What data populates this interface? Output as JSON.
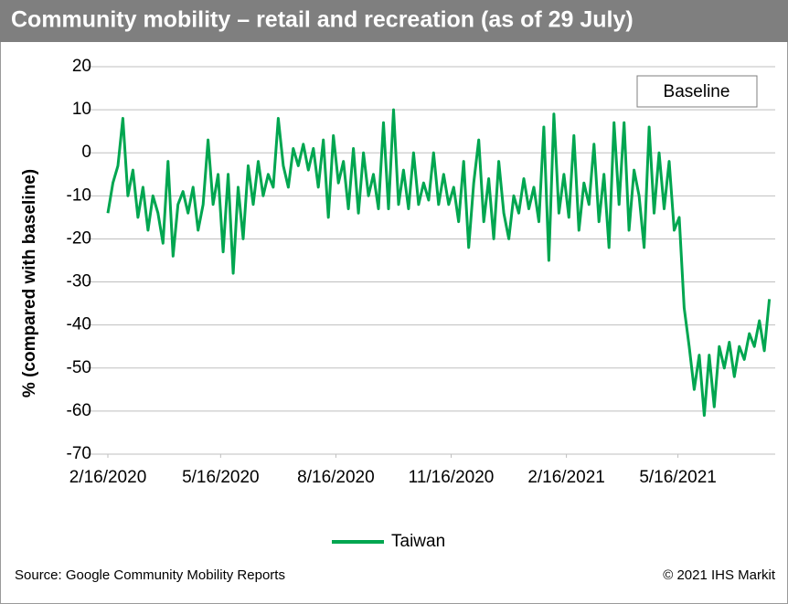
{
  "chart_data": {
    "type": "line",
    "title": "Community mobility – retail and recreation (as of 29 July)",
    "y_label": "% (compared with baseline)",
    "annotation": "Baseline",
    "source": "Source: Google Community Mobility Reports",
    "copyright": "© 2021 IHS Markit",
    "ylim": [
      -70,
      20
    ],
    "yticks": [
      -70,
      -60,
      -50,
      -40,
      -30,
      -20,
      -10,
      0,
      10,
      20
    ],
    "grid": true,
    "xlim": [
      "2020-02-16",
      "2021-07-29"
    ],
    "xticks": [
      {
        "value": "2020-02-16",
        "label": "2/16/2020"
      },
      {
        "value": "2020-05-16",
        "label": "5/16/2020"
      },
      {
        "value": "2020-08-16",
        "label": "8/16/2020"
      },
      {
        "value": "2020-11-16",
        "label": "11/16/2020"
      },
      {
        "value": "2021-02-16",
        "label": "2/16/2021"
      },
      {
        "value": "2021-05-16",
        "label": "5/16/2021"
      }
    ],
    "legend": "bottom",
    "x": [
      "2020-02-16",
      "2020-02-20",
      "2020-02-24",
      "2020-02-28",
      "2020-03-03",
      "2020-03-07",
      "2020-03-11",
      "2020-03-15",
      "2020-03-19",
      "2020-03-23",
      "2020-03-27",
      "2020-03-31",
      "2020-04-04",
      "2020-04-08",
      "2020-04-12",
      "2020-04-16",
      "2020-04-20",
      "2020-04-24",
      "2020-04-28",
      "2020-05-02",
      "2020-05-06",
      "2020-05-10",
      "2020-05-14",
      "2020-05-18",
      "2020-05-22",
      "2020-05-26",
      "2020-05-30",
      "2020-06-03",
      "2020-06-07",
      "2020-06-11",
      "2020-06-15",
      "2020-06-19",
      "2020-06-23",
      "2020-06-27",
      "2020-07-01",
      "2020-07-05",
      "2020-07-09",
      "2020-07-13",
      "2020-07-17",
      "2020-07-21",
      "2020-07-25",
      "2020-07-29",
      "2020-08-02",
      "2020-08-06",
      "2020-08-10",
      "2020-08-14",
      "2020-08-18",
      "2020-08-22",
      "2020-08-26",
      "2020-08-30",
      "2020-09-03",
      "2020-09-07",
      "2020-09-11",
      "2020-09-15",
      "2020-09-19",
      "2020-09-23",
      "2020-09-27",
      "2020-10-01",
      "2020-10-05",
      "2020-10-09",
      "2020-10-13",
      "2020-10-17",
      "2020-10-21",
      "2020-10-25",
      "2020-10-29",
      "2020-11-02",
      "2020-11-06",
      "2020-11-10",
      "2020-11-14",
      "2020-11-18",
      "2020-11-22",
      "2020-11-26",
      "2020-11-30",
      "2020-12-04",
      "2020-12-08",
      "2020-12-12",
      "2020-12-16",
      "2020-12-20",
      "2020-12-24",
      "2020-12-28",
      "2021-01-01",
      "2021-01-05",
      "2021-01-09",
      "2021-01-13",
      "2021-01-17",
      "2021-01-21",
      "2021-01-25",
      "2021-01-29",
      "2021-02-02",
      "2021-02-06",
      "2021-02-10",
      "2021-02-14",
      "2021-02-18",
      "2021-02-22",
      "2021-02-26",
      "2021-03-02",
      "2021-03-06",
      "2021-03-10",
      "2021-03-14",
      "2021-03-18",
      "2021-03-22",
      "2021-03-26",
      "2021-03-30",
      "2021-04-03",
      "2021-04-07",
      "2021-04-11",
      "2021-04-15",
      "2021-04-19",
      "2021-04-23",
      "2021-04-27",
      "2021-05-01",
      "2021-05-05",
      "2021-05-09",
      "2021-05-13",
      "2021-05-17",
      "2021-05-21",
      "2021-05-25",
      "2021-05-29",
      "2021-06-02",
      "2021-06-06",
      "2021-06-10",
      "2021-06-14",
      "2021-06-18",
      "2021-06-22",
      "2021-06-26",
      "2021-06-30",
      "2021-07-04",
      "2021-07-08",
      "2021-07-12",
      "2021-07-16",
      "2021-07-20",
      "2021-07-24",
      "2021-07-28"
    ],
    "series": [
      {
        "name": "Taiwan",
        "color": "#00a650",
        "values": [
          -14,
          -7,
          -3,
          8,
          -10,
          -4,
          -15,
          -8,
          -18,
          -10,
          -14,
          -21,
          -2,
          -24,
          -12,
          -9,
          -14,
          -8,
          -18,
          -12,
          3,
          -12,
          -5,
          -23,
          -5,
          -28,
          -8,
          -20,
          -3,
          -12,
          -2,
          -10,
          -5,
          -8,
          8,
          -3,
          -8,
          1,
          -3,
          2,
          -4,
          1,
          -8,
          3,
          -15,
          4,
          -7,
          -2,
          -13,
          1,
          -14,
          0,
          -10,
          -5,
          -13,
          7,
          -13,
          10,
          -12,
          -4,
          -13,
          0,
          -12,
          -7,
          -11,
          0,
          -12,
          -5,
          -12,
          -8,
          -16,
          -2,
          -22,
          -7,
          3,
          -16,
          -6,
          -20,
          -2,
          -14,
          -20,
          -10,
          -14,
          -6,
          -13,
          -8,
          -16,
          6,
          -25,
          9,
          -14,
          -5,
          -15,
          4,
          -18,
          -7,
          -12,
          2,
          -16,
          -5,
          -22,
          7,
          -12,
          7,
          -18,
          -4,
          -10,
          -22,
          6,
          -14,
          0,
          -13,
          -2,
          -18,
          -15,
          -36,
          -45,
          -55,
          -47,
          -61,
          -47,
          -59,
          -45,
          -50,
          -44,
          -52,
          -45,
          -48,
          -42,
          -45,
          -39,
          -46,
          -34
        ]
      }
    ]
  }
}
